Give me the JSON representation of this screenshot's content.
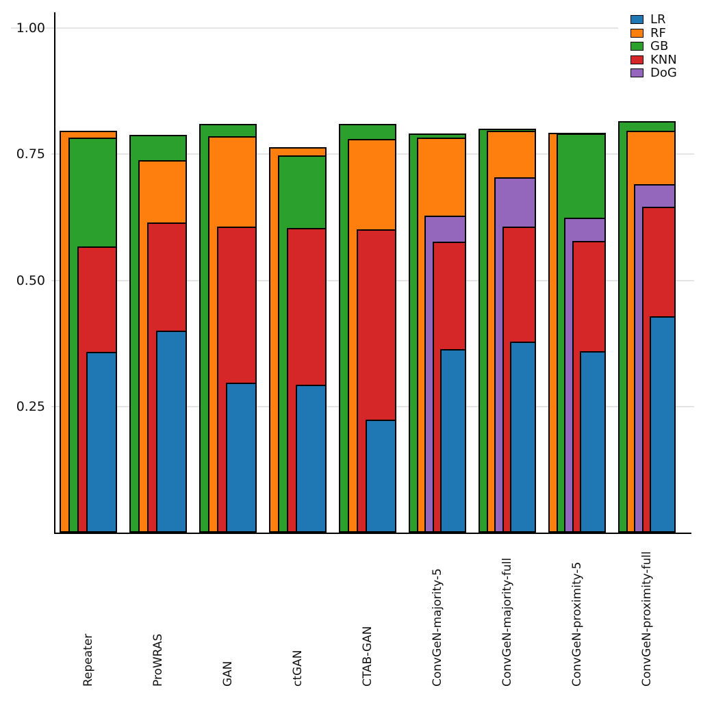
{
  "chart_data": {
    "type": "bar",
    "variant": "grouped-overlapping-nested-bars",
    "title": "",
    "xlabel": "",
    "ylabel": "",
    "categories": [
      "Repeater",
      "ProWRAS",
      "GAN",
      "ctGAN",
      "CTAB-GAN",
      "ConvGeN-majority-5",
      "ConvGeN-majority-full",
      "ConvGeN-proximity-5",
      "ConvGeN-proximity-full"
    ],
    "series": [
      {
        "name": "LR",
        "color": "#1f77b4",
        "values": [
          0.358,
          0.4,
          0.297,
          0.293,
          0.224,
          0.364,
          0.379,
          0.36,
          0.429
        ]
      },
      {
        "name": "RF",
        "color": "#ff7f0e",
        "values": [
          0.797,
          0.738,
          0.785,
          0.764,
          0.78,
          0.783,
          0.796,
          0.792,
          0.797
        ]
      },
      {
        "name": "GB",
        "color": "#2ca02c",
        "values": [
          0.783,
          0.788,
          0.81,
          0.747,
          0.81,
          0.791,
          0.801,
          0.791,
          0.816
        ]
      },
      {
        "name": "KNN",
        "color": "#d62728",
        "values": [
          0.567,
          0.614,
          0.606,
          0.604,
          0.601,
          0.577,
          0.606,
          0.578,
          0.646
        ]
      },
      {
        "name": "DoG",
        "color": "#9467bd",
        "values": [
          null,
          null,
          null,
          null,
          null,
          0.628,
          0.704,
          0.624,
          0.69
        ]
      }
    ],
    "ylim": [
      0,
      1.0
    ],
    "yticks": [
      0.25,
      0.5,
      0.75,
      1.0
    ],
    "ytick_labels": [
      "0.25",
      "0.50",
      "0.75",
      "1.00"
    ],
    "grid": "horizontal",
    "grid_color": "#e4e4e4",
    "bar_edge_color": "#000000",
    "legend": {
      "position": "top-right",
      "entries": [
        "LR",
        "RF",
        "GB",
        "KNN",
        "DoG"
      ]
    }
  }
}
